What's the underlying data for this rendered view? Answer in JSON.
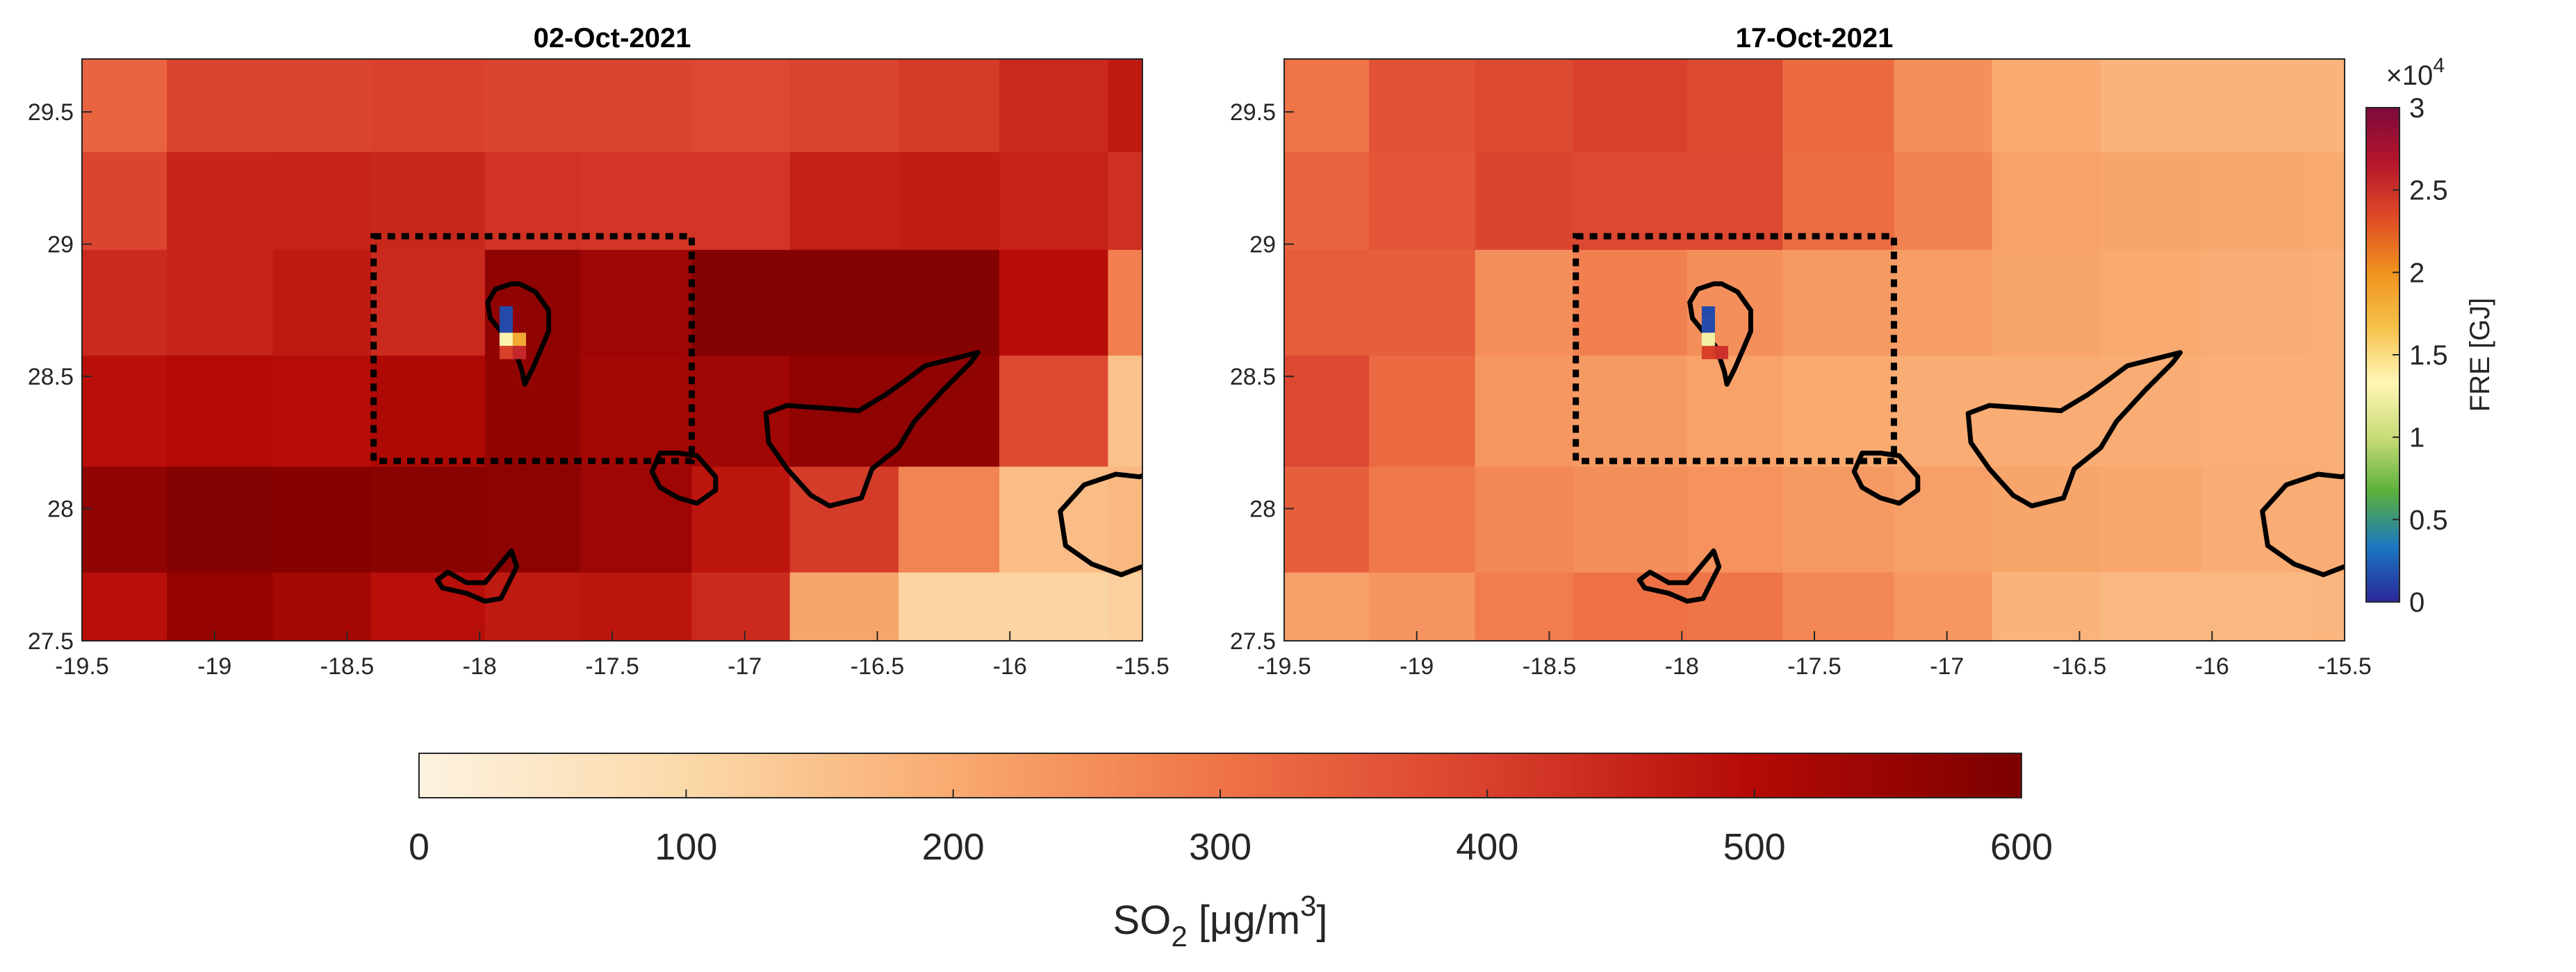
{
  "chart_data": [
    {
      "type": "heatmap",
      "title": "02-Oct-2021",
      "x_ticks": [
        "-19.5",
        "-19",
        "-18.5",
        "-18",
        "-17.5",
        "-17",
        "-16.5",
        "-16",
        "-15.5"
      ],
      "y_ticks": [
        "27.5",
        "28",
        "28.5",
        "29",
        "29.5"
      ],
      "xlim": [
        -19.5,
        -15.5
      ],
      "ylim": [
        27.5,
        29.7
      ],
      "lon_edges": [
        -19.5,
        -19.18,
        -18.78,
        -18.41,
        -17.98,
        -17.62,
        -17.2,
        -16.83,
        -16.42,
        -16.04,
        -15.63,
        -15.5
      ],
      "lat_edges": [
        27.5,
        27.76,
        28.16,
        28.58,
        28.98,
        29.35,
        29.7
      ],
      "so2_grid": [
        [
          490,
          555,
          525,
          490,
          470,
          480,
          440,
          210,
          110,
          110,
          120
        ],
        [
          565,
          585,
          580,
          575,
          570,
          540,
          480,
          410,
          270,
          160,
          170
        ],
        [
          490,
          500,
          495,
          510,
          560,
          530,
          535,
          565,
          565,
          380,
          150
        ],
        [
          440,
          455,
          470,
          440,
          565,
          540,
          585,
          585,
          585,
          495,
          280
        ],
        [
          390,
          450,
          455,
          445,
          425,
          420,
          420,
          460,
          465,
          455,
          430
        ],
        [
          330,
          390,
          390,
          400,
          390,
          390,
          385,
          395,
          410,
          440,
          470
        ]
      ],
      "fre_pixels": [
        {
          "lon": -17.9,
          "lat": 28.74,
          "fre_gj": 1500
        },
        {
          "lon": -17.9,
          "lat": 28.69,
          "fre_gj": 1500
        },
        {
          "lon": -17.9,
          "lat": 28.64,
          "fre_gj": 13000
        },
        {
          "lon": -17.85,
          "lat": 28.64,
          "fre_gj": 18500
        },
        {
          "lon": -17.9,
          "lat": 28.59,
          "fre_gj": 24000
        },
        {
          "lon": -17.85,
          "lat": 28.59,
          "fre_gj": 25500
        }
      ],
      "region_box": {
        "lon": [
          -18.4,
          -17.2
        ],
        "lat": [
          28.18,
          29.03
        ]
      }
    },
    {
      "type": "heatmap",
      "title": "17-Oct-2021",
      "x_ticks": [
        "-19.5",
        "-19",
        "-18.5",
        "-18",
        "-17.5",
        "-17",
        "-16.5",
        "-16",
        "-15.5"
      ],
      "y_ticks": [
        "27.5",
        "28",
        "28.5",
        "29",
        "29.5"
      ],
      "xlim": [
        -19.5,
        -15.5
      ],
      "ylim": [
        27.5,
        29.7
      ],
      "lon_edges": [
        -19.5,
        -19.18,
        -18.78,
        -18.41,
        -17.98,
        -17.62,
        -17.2,
        -16.83,
        -16.42,
        -16.04,
        -15.63,
        -15.5
      ],
      "lat_edges": [
        27.5,
        27.76,
        28.16,
        28.58,
        28.98,
        29.35,
        29.7
      ],
      "so2_grid": [
        [
          220,
          240,
          285,
          305,
          300,
          265,
          235,
          180,
          170,
          170,
          175
        ],
        [
          340,
          290,
          265,
          250,
          245,
          230,
          220,
          210,
          205,
          195,
          195
        ],
        [
          385,
          320,
          235,
          230,
          215,
          200,
          195,
          195,
          195,
          190,
          190
        ],
        [
          345,
          340,
          250,
          280,
          250,
          230,
          225,
          210,
          200,
          195,
          190
        ],
        [
          330,
          360,
          390,
          385,
          385,
          315,
          275,
          215,
          210,
          205,
          200
        ],
        [
          300,
          365,
          380,
          400,
          380,
          320,
          250,
          200,
          180,
          180,
          180
        ]
      ],
      "fre_pixels": [
        {
          "lon": -17.9,
          "lat": 28.74,
          "fre_gj": 1500
        },
        {
          "lon": -17.9,
          "lat": 28.69,
          "fre_gj": 1500
        },
        {
          "lon": -17.9,
          "lat": 28.64,
          "fre_gj": 12500
        },
        {
          "lon": -17.9,
          "lat": 28.59,
          "fre_gj": 24000
        },
        {
          "lon": -17.85,
          "lat": 28.59,
          "fre_gj": 25000
        }
      ],
      "region_box": {
        "lon": [
          -18.4,
          -17.2
        ],
        "lat": [
          28.18,
          29.03
        ]
      }
    }
  ],
  "colorbar_so2": {
    "ticks": [
      "0",
      "100",
      "200",
      "300",
      "400",
      "500",
      "600"
    ],
    "range": [
      0,
      600
    ],
    "label": "SO",
    "label_sub": "2",
    "label_unit": " [μg/m",
    "label_sup": "3",
    "label_end": "]",
    "stops": [
      "#fdf2e0",
      "#fbd9a9",
      "#f9aa70",
      "#ef7447",
      "#d9402d",
      "#b40a06",
      "#7b0000"
    ]
  },
  "colorbar_fre": {
    "ticks": [
      "0",
      "0.5",
      "1",
      "1.5",
      "2",
      "2.5",
      "3"
    ],
    "range": [
      0,
      30000
    ],
    "multiplier": "×10",
    "multiplier_exp": "4",
    "label": "FRE [GJ]",
    "stops": [
      "#2c2799",
      "#1a77c2",
      "#5bb03c",
      "#c9dc77",
      "#fff6b5",
      "#f5c14a",
      "#f0931f",
      "#df4b26",
      "#b6152c",
      "#7c0a3b"
    ]
  },
  "coastlines": {
    "la_palma": [
      [
        -17.88,
        28.85
      ],
      [
        -17.94,
        28.83
      ],
      [
        -17.97,
        28.78
      ],
      [
        -17.96,
        28.72
      ],
      [
        -17.92,
        28.67
      ],
      [
        -17.87,
        28.61
      ],
      [
        -17.84,
        28.52
      ],
      [
        -17.83,
        28.47
      ],
      [
        -17.8,
        28.53
      ],
      [
        -17.77,
        28.6
      ],
      [
        -17.74,
        28.67
      ],
      [
        -17.74,
        28.75
      ],
      [
        -17.79,
        28.82
      ],
      [
        -17.85,
        28.85
      ]
    ],
    "tenerife": [
      [
        -16.12,
        28.59
      ],
      [
        -16.2,
        28.57
      ],
      [
        -16.32,
        28.54
      ],
      [
        -16.4,
        28.48
      ],
      [
        -16.47,
        28.43
      ],
      [
        -16.57,
        28.37
      ],
      [
        -16.7,
        28.38
      ],
      [
        -16.84,
        28.39
      ],
      [
        -16.92,
        28.36
      ],
      [
        -16.91,
        28.25
      ],
      [
        -16.84,
        28.15
      ],
      [
        -16.75,
        28.05
      ],
      [
        -16.68,
        28.01
      ],
      [
        -16.56,
        28.04
      ],
      [
        -16.52,
        28.15
      ],
      [
        -16.42,
        28.23
      ],
      [
        -16.36,
        28.33
      ],
      [
        -16.25,
        28.45
      ],
      [
        -16.15,
        28.55
      ]
    ],
    "la_gomera": [
      [
        -17.32,
        28.21
      ],
      [
        -17.25,
        28.21
      ],
      [
        -17.18,
        28.2
      ],
      [
        -17.11,
        28.12
      ],
      [
        -17.11,
        28.07
      ],
      [
        -17.18,
        28.02
      ],
      [
        -17.25,
        28.04
      ],
      [
        -17.32,
        28.08
      ],
      [
        -17.35,
        28.14
      ]
    ],
    "el_hierro": [
      [
        -17.88,
        27.84
      ],
      [
        -17.93,
        27.78
      ],
      [
        -17.98,
        27.72
      ],
      [
        -18.05,
        27.72
      ],
      [
        -18.12,
        27.76
      ],
      [
        -18.16,
        27.73
      ],
      [
        -18.14,
        27.7
      ],
      [
        -18.05,
        27.68
      ],
      [
        -17.98,
        27.65
      ],
      [
        -17.92,
        27.66
      ],
      [
        -17.89,
        27.72
      ],
      [
        -17.86,
        27.78
      ]
    ],
    "gran_canaria": [
      [
        -15.51,
        28.12
      ],
      [
        -15.42,
        28.16
      ],
      [
        -15.38,
        28.08
      ],
      [
        -15.37,
        27.93
      ],
      [
        -15.45,
        27.8
      ],
      [
        -15.58,
        27.75
      ],
      [
        -15.69,
        27.79
      ],
      [
        -15.79,
        27.86
      ],
      [
        -15.81,
        27.99
      ],
      [
        -15.72,
        28.09
      ],
      [
        -15.6,
        28.13
      ]
    ]
  }
}
